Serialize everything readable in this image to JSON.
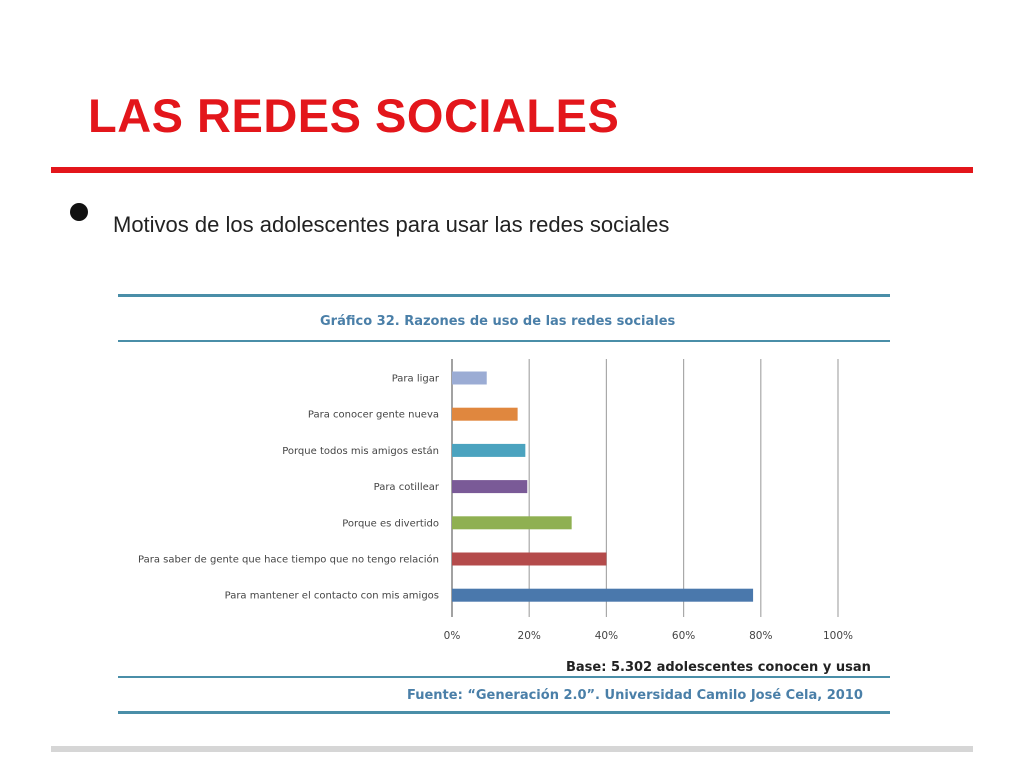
{
  "slide": {
    "title": "LAS REDES SOCIALES",
    "bullet": "Motivos de los adolescentes para usar las redes sociales"
  },
  "colors": {
    "title_red": "#e3161b",
    "chart_rule_teal": "#4a8ea8"
  },
  "chart_data": {
    "type": "bar",
    "orientation": "horizontal",
    "title": "Gráfico 32. Razones de uso de las redes sociales",
    "categories": [
      "Para ligar",
      "Para conocer gente nueva",
      "Porque todos mis amigos están",
      "Para cotillear",
      "Porque es divertido",
      "Para saber de gente que hace tiempo que no tengo relación",
      "Para mantener el contacto con mis amigos"
    ],
    "values": [
      9,
      17,
      19,
      19.5,
      31,
      40,
      78
    ],
    "bar_colors": [
      "#9bacd4",
      "#e0873e",
      "#4ba3bf",
      "#7a5a97",
      "#8fb052",
      "#b44b4b",
      "#4a78ac"
    ],
    "xlim": [
      0,
      100
    ],
    "xticks": [
      "0%",
      "20%",
      "40%",
      "60%",
      "80%",
      "100%"
    ],
    "grid": true,
    "base_note": "Base: 5.302 adolescentes conocen y usan",
    "source": "Fuente: “Generación 2.0”. Universidad Camilo José Cela, 2010"
  }
}
